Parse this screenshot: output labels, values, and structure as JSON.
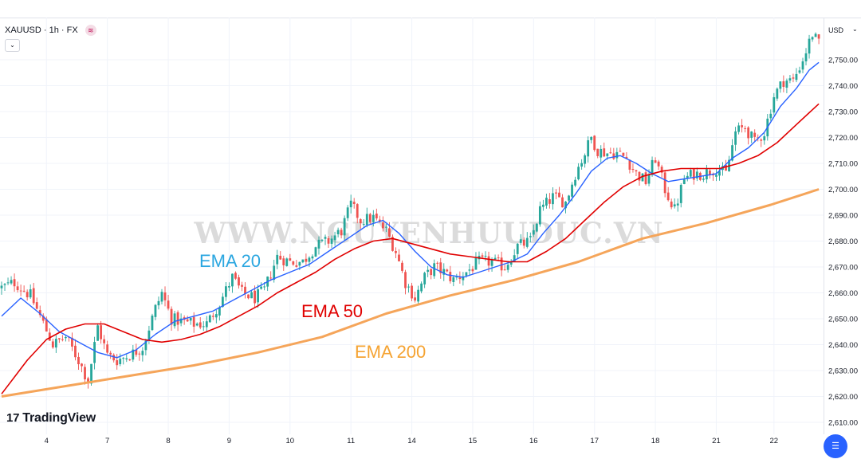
{
  "header": {
    "symbol": "XAUUSD · 1h · FX",
    "badge_icon": "≋",
    "collapse_icon": "⌄"
  },
  "currency": {
    "label": "USD",
    "chevron": "⌄"
  },
  "watermark": "WWW.NGUYENHUUDUC.VN",
  "logo": {
    "mark": "17",
    "text": "TradingView"
  },
  "fab_icon": "☰",
  "colors": {
    "up": "#26a69a",
    "down": "#ef5350",
    "ema20": "#2962ff",
    "ema50": "#e00000",
    "ema200": "#f5a55a",
    "ema20_label": "#2aa6e0",
    "ema50_label": "#e00000",
    "ema200_label": "#f5a332"
  },
  "chart_data": {
    "type": "candlestick",
    "title": "XAUUSD · 1h · FX",
    "ylabel": "USD",
    "ylim": [
      2605,
      2773
    ],
    "y_ticks": [
      2610,
      2620,
      2630,
      2640,
      2650,
      2660,
      2670,
      2680,
      2690,
      2700,
      2710,
      2720,
      2730,
      2740,
      2750
    ],
    "y_tick_labels": [
      "2,610.00",
      "2,620.00",
      "2,630.00",
      "2,640.00",
      "2,650.00",
      "2,660.00",
      "2,670.00",
      "2,680.00",
      "2,690.00",
      "2,700.00",
      "2,710.00",
      "2,720.00",
      "2,730.00",
      "2,740.00",
      "2,750.00"
    ],
    "x_ticks": [
      {
        "label": "4",
        "index": 14
      },
      {
        "label": "7",
        "index": 33
      },
      {
        "label": "8",
        "index": 52
      },
      {
        "label": "9",
        "index": 71
      },
      {
        "label": "10",
        "index": 90
      },
      {
        "label": "11",
        "index": 109
      },
      {
        "label": "14",
        "index": 128
      },
      {
        "label": "15",
        "index": 147
      },
      {
        "label": "16",
        "index": 166
      },
      {
        "label": "17",
        "index": 185
      },
      {
        "label": "18",
        "index": 204
      },
      {
        "label": "21",
        "index": 223
      },
      {
        "label": "22",
        "index": 241
      }
    ],
    "candle_count": 256,
    "price_anchors": [
      [
        0,
        2662
      ],
      [
        4,
        2664
      ],
      [
        9,
        2659
      ],
      [
        12,
        2651
      ],
      [
        16,
        2640
      ],
      [
        20,
        2643
      ],
      [
        24,
        2634
      ],
      [
        27,
        2626
      ],
      [
        30,
        2647
      ],
      [
        33,
        2636
      ],
      [
        36,
        2634
      ],
      [
        40,
        2636
      ],
      [
        44,
        2639
      ],
      [
        48,
        2654
      ],
      [
        50,
        2660
      ],
      [
        53,
        2650
      ],
      [
        56,
        2649
      ],
      [
        60,
        2648
      ],
      [
        64,
        2648
      ],
      [
        68,
        2656
      ],
      [
        72,
        2666
      ],
      [
        75,
        2660
      ],
      [
        79,
        2658
      ],
      [
        82,
        2661
      ],
      [
        86,
        2674
      ],
      [
        90,
        2672
      ],
      [
        94,
        2672
      ],
      [
        98,
        2678
      ],
      [
        102,
        2680
      ],
      [
        106,
        2684
      ],
      [
        109,
        2694
      ],
      [
        112,
        2688
      ],
      [
        116,
        2689
      ],
      [
        120,
        2684
      ],
      [
        123,
        2676
      ],
      [
        126,
        2664
      ],
      [
        129,
        2658
      ],
      [
        132,
        2666
      ],
      [
        135,
        2670
      ],
      [
        138,
        2668
      ],
      [
        141,
        2665
      ],
      [
        145,
        2668
      ],
      [
        149,
        2672
      ],
      [
        153,
        2672
      ],
      [
        157,
        2670
      ],
      [
        161,
        2678
      ],
      [
        165,
        2680
      ],
      [
        168,
        2692
      ],
      [
        172,
        2697
      ],
      [
        176,
        2695
      ],
      [
        179,
        2706
      ],
      [
        182,
        2714
      ],
      [
        184,
        2720
      ],
      [
        186,
        2715
      ],
      [
        189,
        2714
      ],
      [
        192,
        2714
      ],
      [
        195,
        2712
      ],
      [
        198,
        2706
      ],
      [
        201,
        2703
      ],
      [
        204,
        2712
      ],
      [
        207,
        2700
      ],
      [
        210,
        2692
      ],
      [
        213,
        2704
      ],
      [
        216,
        2706
      ],
      [
        219,
        2706
      ],
      [
        223,
        2708
      ],
      [
        226,
        2706
      ],
      [
        229,
        2722
      ],
      [
        232,
        2724
      ],
      [
        235,
        2718
      ],
      [
        238,
        2722
      ],
      [
        241,
        2736
      ],
      [
        244,
        2742
      ],
      [
        247,
        2742
      ],
      [
        250,
        2750
      ],
      [
        253,
        2760
      ],
      [
        255,
        2756
      ]
    ],
    "series": [
      {
        "name": "EMA 20",
        "color": "#2962ff",
        "values": [
          [
            0,
            2651
          ],
          [
            6,
            2658
          ],
          [
            12,
            2652
          ],
          [
            18,
            2645
          ],
          [
            24,
            2641
          ],
          [
            30,
            2637
          ],
          [
            36,
            2635
          ],
          [
            42,
            2638
          ],
          [
            48,
            2644
          ],
          [
            54,
            2649
          ],
          [
            60,
            2651
          ],
          [
            66,
            2653
          ],
          [
            72,
            2657
          ],
          [
            78,
            2661
          ],
          [
            84,
            2665
          ],
          [
            90,
            2668
          ],
          [
            96,
            2671
          ],
          [
            102,
            2676
          ],
          [
            108,
            2681
          ],
          [
            114,
            2686
          ],
          [
            119,
            2688
          ],
          [
            124,
            2683
          ],
          [
            129,
            2676
          ],
          [
            134,
            2670
          ],
          [
            139,
            2667
          ],
          [
            144,
            2666
          ],
          [
            149,
            2668
          ],
          [
            154,
            2670
          ],
          [
            159,
            2672
          ],
          [
            164,
            2675
          ],
          [
            169,
            2683
          ],
          [
            174,
            2690
          ],
          [
            179,
            2698
          ],
          [
            184,
            2707
          ],
          [
            189,
            2712
          ],
          [
            193,
            2713
          ],
          [
            198,
            2710
          ],
          [
            203,
            2706
          ],
          [
            208,
            2703
          ],
          [
            213,
            2704
          ],
          [
            218,
            2705
          ],
          [
            223,
            2706
          ],
          [
            228,
            2712
          ],
          [
            233,
            2716
          ],
          [
            238,
            2722
          ],
          [
            243,
            2732
          ],
          [
            248,
            2739
          ],
          [
            252,
            2746
          ],
          [
            255,
            2749
          ]
        ]
      },
      {
        "name": "EMA 50",
        "color": "#e00000",
        "values": [
          [
            0,
            2621
          ],
          [
            8,
            2634
          ],
          [
            14,
            2642
          ],
          [
            20,
            2646
          ],
          [
            26,
            2648
          ],
          [
            32,
            2648
          ],
          [
            38,
            2645
          ],
          [
            44,
            2642
          ],
          [
            50,
            2641
          ],
          [
            56,
            2642
          ],
          [
            62,
            2644
          ],
          [
            68,
            2647
          ],
          [
            74,
            2651
          ],
          [
            80,
            2655
          ],
          [
            86,
            2660
          ],
          [
            92,
            2664
          ],
          [
            98,
            2668
          ],
          [
            104,
            2673
          ],
          [
            110,
            2677
          ],
          [
            116,
            2680
          ],
          [
            122,
            2681
          ],
          [
            128,
            2679
          ],
          [
            134,
            2677
          ],
          [
            140,
            2675
          ],
          [
            146,
            2674
          ],
          [
            152,
            2673
          ],
          [
            158,
            2672
          ],
          [
            164,
            2672
          ],
          [
            170,
            2676
          ],
          [
            176,
            2681
          ],
          [
            182,
            2688
          ],
          [
            188,
            2695
          ],
          [
            194,
            2701
          ],
          [
            200,
            2705
          ],
          [
            206,
            2707
          ],
          [
            212,
            2708
          ],
          [
            218,
            2708
          ],
          [
            224,
            2708
          ],
          [
            230,
            2710
          ],
          [
            236,
            2713
          ],
          [
            242,
            2718
          ],
          [
            248,
            2725
          ],
          [
            255,
            2733
          ]
        ]
      },
      {
        "name": "EMA 200",
        "color": "#f5a55a",
        "values": [
          [
            0,
            2620
          ],
          [
            20,
            2624
          ],
          [
            40,
            2628
          ],
          [
            60,
            2632
          ],
          [
            80,
            2637
          ],
          [
            100,
            2643
          ],
          [
            120,
            2652
          ],
          [
            140,
            2659
          ],
          [
            160,
            2665
          ],
          [
            180,
            2672
          ],
          [
            200,
            2681
          ],
          [
            220,
            2687
          ],
          [
            240,
            2694
          ],
          [
            255,
            2700
          ]
        ]
      }
    ],
    "annotations": [
      {
        "text": "EMA 20",
        "color": "#2aa6e0"
      },
      {
        "text": "EMA 50",
        "color": "#e00000"
      },
      {
        "text": "EMA 200",
        "color": "#f5a332"
      }
    ],
    "grid": true,
    "legend": "none"
  }
}
